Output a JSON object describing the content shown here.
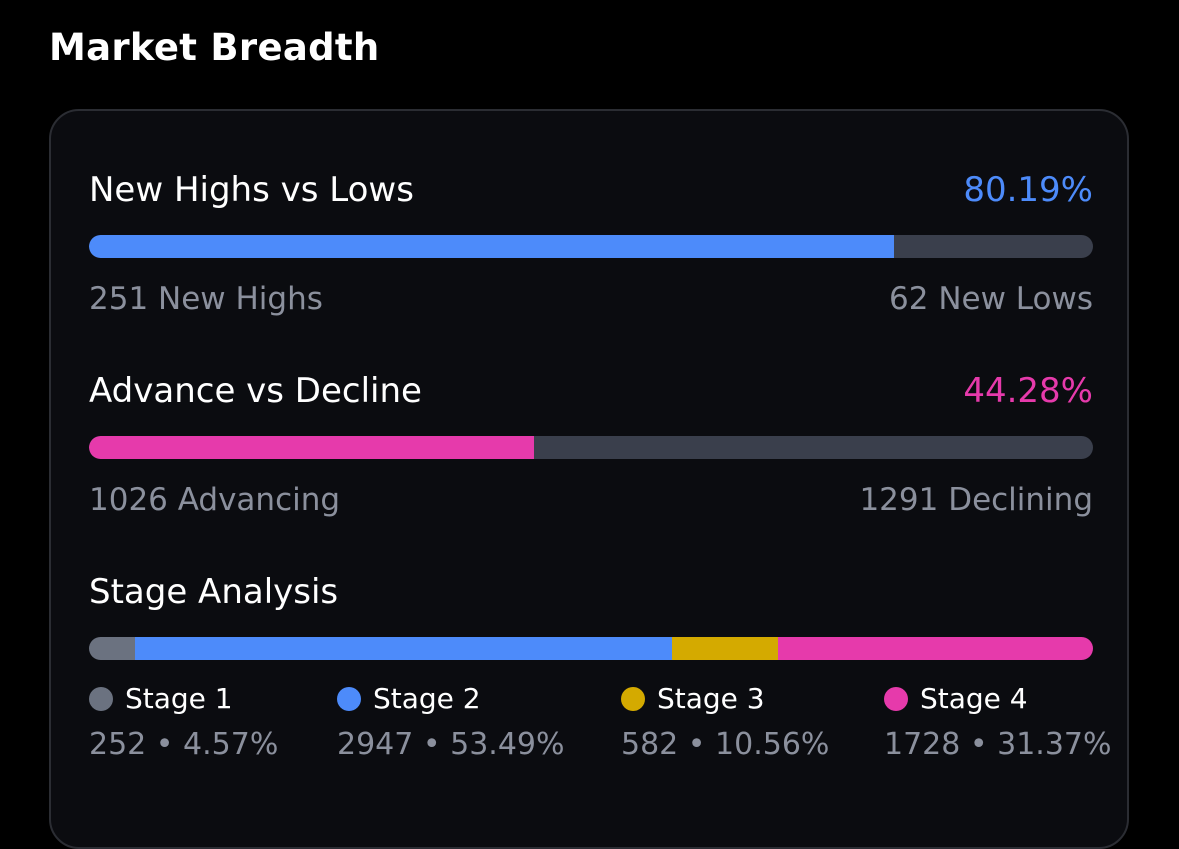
{
  "header": {
    "title": "Market Breadth"
  },
  "colors": {
    "blue": "#4d8bfa",
    "pink": "#e63aab",
    "gray": "#6b7280",
    "gold": "#d4aa00",
    "track": "#3a3f4c"
  },
  "highs_lows": {
    "title": "New Highs vs Lows",
    "percent": "80.19%",
    "fill_fraction": 0.8019,
    "left_label": "251 New Highs",
    "right_label": "62 New Lows"
  },
  "advance_decline": {
    "title": "Advance vs Decline",
    "percent": "44.28%",
    "fill_fraction": 0.4428,
    "left_label": "1026 Advancing",
    "right_label": "1291 Declining"
  },
  "stage_analysis": {
    "title": "Stage Analysis",
    "stages": [
      {
        "label": "Stage 1",
        "value": "252 • 4.57%",
        "fraction": 0.0457
      },
      {
        "label": "Stage 2",
        "value": "2947 • 53.49%",
        "fraction": 0.5349
      },
      {
        "label": "Stage 3",
        "value": "582 • 10.56%",
        "fraction": 0.1056
      },
      {
        "label": "Stage 4",
        "value": "1728 • 31.37%",
        "fraction": 0.3137
      }
    ]
  }
}
